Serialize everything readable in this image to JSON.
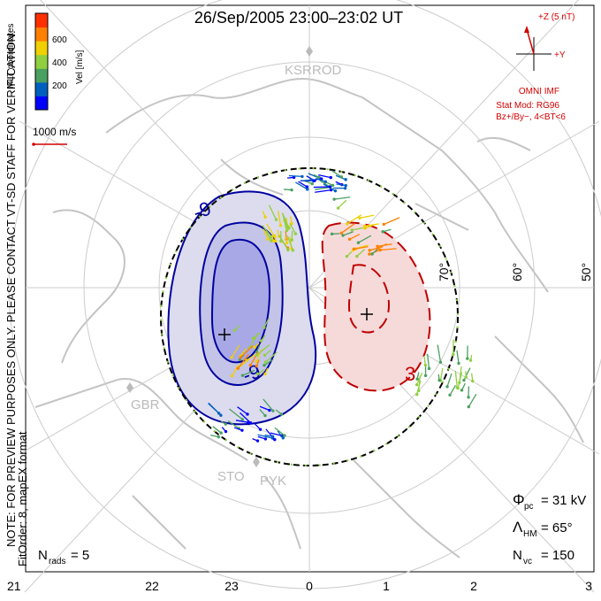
{
  "title": "26/Sep/2005 23:00–23:02 UT",
  "side_note": "NOTE: FOR PREVIEW PURPOSES ONLY. PLEASE CONTACT VT-SD STAFF FOR VERIFICATION.",
  "fit_note": "FitOrder: 8, mapEX format",
  "colorbar": {
    "label": "Vel [m/s]",
    "coords": "MLT coordinates",
    "ticks": [
      "600",
      "400",
      "200"
    ],
    "colors": [
      "#0000ff",
      "#0060c0",
      "#4aa060",
      "#90d040",
      "#f0d000",
      "#ff8000",
      "#ff3000"
    ]
  },
  "scale_vector": "1000 m/s",
  "imf": {
    "z_label": "+Z (5 nT)",
    "y_label": "+Y",
    "source": "OMNI IMF",
    "model": "Stat Mod: RG96",
    "condition": "Bz+/By−, 4<BT<6"
  },
  "sites": [
    "KSR",
    "ROD",
    "GBR",
    "STO",
    "PYK"
  ],
  "stats": {
    "phi_pc": "= 31 kV",
    "lambda_hm": "= 65°",
    "n_vc": "= 150",
    "n_rads": "= 5"
  },
  "chart_data": {
    "type": "polar convection map",
    "latitude_labels": [
      "70°",
      "60°",
      "50°"
    ],
    "mlt_ticks": [
      "21",
      "22",
      "23",
      "0",
      "1",
      "2",
      "3"
    ],
    "potential_contours_kV": [
      -9,
      3
    ],
    "cross_polar_cap_potential_kV": 31,
    "heppner_maynard_boundary_deg": 65,
    "vector_count": 150,
    "radar_count": 5,
    "velocity_range_m_s": [
      0,
      700
    ]
  }
}
